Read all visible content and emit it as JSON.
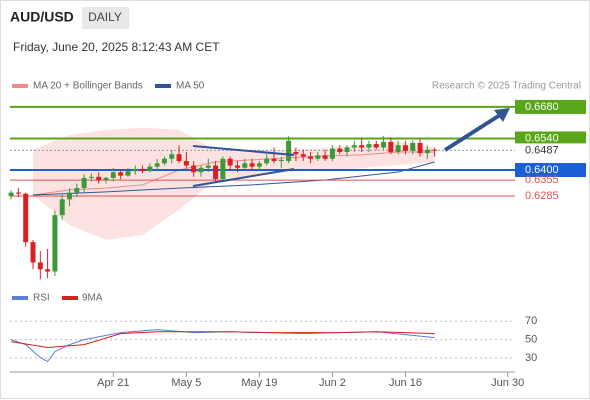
{
  "header": {
    "symbol": "AUD/USD",
    "period": "DAILY",
    "timestamp": "Friday, June 20, 2025 8:12:43 AM CET",
    "copyright": "Research © 2025 Trading Central"
  },
  "chart_data": [
    {
      "type": "candlestick",
      "up_color": "#3a9a3a",
      "down_color": "#d92020",
      "x": [
        0,
        1,
        2,
        3,
        4,
        5,
        6,
        7,
        8,
        9,
        10,
        11,
        12,
        13,
        14,
        15,
        16,
        17,
        18,
        19,
        20,
        21,
        22,
        23,
        24,
        25,
        26,
        27,
        28,
        29,
        30,
        31,
        32,
        33,
        34,
        35,
        36,
        37,
        38,
        39,
        40,
        41,
        42,
        43,
        44,
        45,
        46,
        47,
        48,
        49,
        50,
        51,
        52,
        53,
        54,
        55,
        56,
        57,
        58
      ],
      "open": [
        0.6285,
        0.63,
        0.6295,
        0.608,
        0.599,
        0.596,
        0.595,
        0.62,
        0.627,
        0.63,
        0.632,
        0.6365,
        0.637,
        0.6355,
        0.6365,
        0.639,
        0.6375,
        0.6395,
        0.6405,
        0.6395,
        0.6415,
        0.643,
        0.645,
        0.647,
        0.644,
        0.642,
        0.639,
        0.641,
        0.642,
        0.636,
        0.645,
        0.642,
        0.641,
        0.643,
        0.6415,
        0.643,
        0.645,
        0.644,
        0.644,
        0.648,
        0.647,
        0.646,
        0.645,
        0.6465,
        0.645,
        0.6495,
        0.648,
        0.65,
        0.651,
        0.65,
        0.6515,
        0.65,
        0.6525,
        0.648,
        0.651,
        0.6485,
        0.652,
        0.6475,
        0.649
      ],
      "high": [
        0.631,
        0.632,
        0.63,
        0.609,
        0.604,
        0.605,
        0.622,
        0.629,
        0.632,
        0.634,
        0.638,
        0.6385,
        0.639,
        0.637,
        0.641,
        0.64,
        0.641,
        0.642,
        0.642,
        0.643,
        0.645,
        0.646,
        0.649,
        0.651,
        0.648,
        0.644,
        0.642,
        0.645,
        0.644,
        0.646,
        0.646,
        0.644,
        0.645,
        0.645,
        0.644,
        0.647,
        0.65,
        0.646,
        0.655,
        0.65,
        0.649,
        0.648,
        0.648,
        0.649,
        0.651,
        0.651,
        0.651,
        0.653,
        0.654,
        0.653,
        0.653,
        0.655,
        0.6545,
        0.653,
        0.653,
        0.653,
        0.654,
        0.651,
        0.65
      ],
      "low": [
        0.627,
        0.628,
        0.606,
        0.596,
        0.5915,
        0.592,
        0.593,
        0.618,
        0.624,
        0.628,
        0.63,
        0.635,
        0.634,
        0.634,
        0.635,
        0.636,
        0.637,
        0.638,
        0.6385,
        0.639,
        0.64,
        0.642,
        0.643,
        0.643,
        0.641,
        0.637,
        0.637,
        0.639,
        0.635,
        0.635,
        0.64,
        0.639,
        0.64,
        0.64,
        0.64,
        0.642,
        0.643,
        0.641,
        0.643,
        0.644,
        0.644,
        0.643,
        0.644,
        0.644,
        0.644,
        0.647,
        0.646,
        0.648,
        0.648,
        0.648,
        0.649,
        0.649,
        0.647,
        0.647,
        0.647,
        0.647,
        0.646,
        0.645,
        0.646
      ],
      "close": [
        0.63,
        0.6295,
        0.608,
        0.599,
        0.596,
        0.595,
        0.62,
        0.627,
        0.63,
        0.632,
        0.6365,
        0.637,
        0.6355,
        0.6365,
        0.639,
        0.6375,
        0.6395,
        0.6405,
        0.6395,
        0.6415,
        0.643,
        0.645,
        0.647,
        0.644,
        0.642,
        0.639,
        0.641,
        0.642,
        0.636,
        0.645,
        0.642,
        0.641,
        0.643,
        0.6415,
        0.643,
        0.645,
        0.644,
        0.6445,
        0.653,
        0.647,
        0.646,
        0.645,
        0.6465,
        0.645,
        0.6495,
        0.648,
        0.65,
        0.651,
        0.65,
        0.6515,
        0.65,
        0.6525,
        0.648,
        0.651,
        0.6485,
        0.652,
        0.6475,
        0.649,
        0.6487
      ],
      "xlim": [
        -0.15,
        69
      ],
      "ylim": [
        0.589,
        0.6755
      ],
      "bands": {
        "name": "MA 20 + Bollinger Bands",
        "color": "#f08a8a",
        "fill": "#fde2e2",
        "x": [
          3,
          8,
          13,
          18,
          23,
          28,
          33,
          38,
          43,
          48,
          53,
          58
        ],
        "upper": [
          0.6489,
          0.6556,
          0.6578,
          0.6587,
          0.6578,
          0.6489,
          0.6489,
          0.6489,
          0.6498,
          0.6511,
          0.6525,
          0.6498
        ],
        "lower": [
          0.6289,
          0.6156,
          0.609,
          0.6112,
          0.6223,
          0.6356,
          0.6378,
          0.6391,
          0.64,
          0.6409,
          0.6423,
          0.6436
        ],
        "middle": [
          0.6289,
          0.6312,
          0.632,
          0.6334,
          0.64,
          0.6436,
          0.6445,
          0.6454,
          0.6463,
          0.6467,
          0.648,
          0.648
        ]
      },
      "ma50": {
        "name": "MA 50",
        "color": "#2f5597",
        "x": [
          3,
          13,
          23,
          33,
          43,
          53,
          58
        ],
        "values": [
          0.6289,
          0.6303,
          0.632,
          0.6334,
          0.6356,
          0.6391,
          0.6436
        ]
      },
      "levels": [
        {
          "value": 0.668,
          "label": "0.6680",
          "color": "#5aa61a",
          "boxed": true
        },
        {
          "value": 0.654,
          "label": "0.6540",
          "color": "#5aa61a",
          "boxed": true
        },
        {
          "value": 0.6487,
          "label": "0.6487",
          "color": "#999999",
          "boxed": false,
          "dotted": true
        },
        {
          "value": 0.64,
          "label": "0.6400",
          "color": "#1a5fd6",
          "boxed": true
        },
        {
          "value": 0.6355,
          "label": "0.6355",
          "color": "#e05050",
          "boxed": false
        },
        {
          "value": 0.6285,
          "label": "0.6285",
          "color": "#e05050",
          "boxed": false
        }
      ]
    },
    {
      "type": "line",
      "xlim": [
        -0.15,
        69
      ],
      "ylim": [
        17,
        80
      ],
      "yticks": [
        30,
        50,
        70
      ],
      "xticks": [
        {
          "value": 14,
          "label": "Apr 21"
        },
        {
          "value": 24,
          "label": "May 5"
        },
        {
          "value": 34,
          "label": "May 19"
        },
        {
          "value": 44,
          "label": "Jun 2"
        },
        {
          "value": 54,
          "label": "Jun 16"
        },
        {
          "value": 68,
          "label": "Jun 30"
        }
      ],
      "series": [
        {
          "name": "RSI",
          "color": "#5b7fd6",
          "x": [
            0,
            2,
            4,
            5,
            6,
            8,
            10,
            15,
            20,
            25,
            30,
            35,
            40,
            45,
            50,
            54,
            58
          ],
          "values": [
            50,
            44.6,
            30.5,
            26.2,
            37,
            44.6,
            50,
            57.6,
            60.8,
            57.6,
            58.6,
            57.6,
            56.5,
            57.6,
            58.6,
            55.4,
            52.2
          ]
        },
        {
          "name": "9MA",
          "color": "#d92020",
          "x": [
            0,
            5,
            10,
            15,
            20,
            25,
            30,
            35,
            40,
            45,
            50,
            54,
            58
          ],
          "values": [
            47.8,
            41.4,
            44.6,
            56.5,
            58.6,
            58.6,
            58.6,
            57.6,
            57.6,
            57.6,
            58.6,
            57.6,
            56.5
          ]
        }
      ]
    }
  ]
}
